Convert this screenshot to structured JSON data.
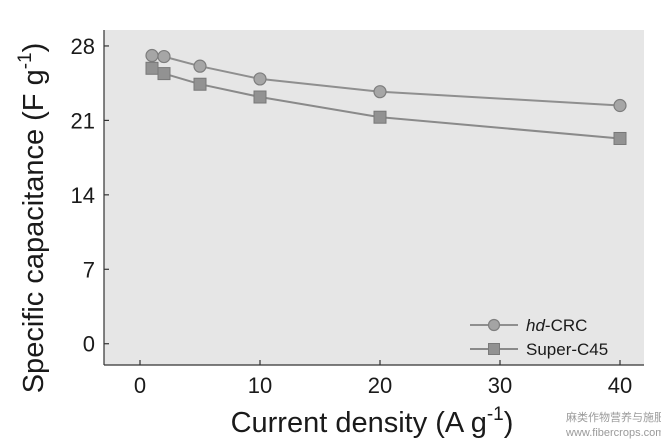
{
  "chart_data": {
    "type": "line",
    "xlabel": "Current density (A g",
    "xlabel_sup": "-1",
    "xlabel_tail": ")",
    "ylabel": "Specific capacitance (F g",
    "ylabel_sup": "-1",
    "ylabel_tail": ")",
    "xlim": [
      -3,
      42
    ],
    "ylim": [
      -2,
      29.5
    ],
    "xticks": [
      0,
      10,
      20,
      30,
      40
    ],
    "yticks": [
      0,
      7,
      14,
      21,
      28
    ],
    "legend_position": "bottom-right",
    "grid": false,
    "plot_background": "#e6e6e6",
    "series": [
      {
        "name_prefix": "hd",
        "name_suffix": "-CRC",
        "marker": "circle",
        "color": "#8f8f8f",
        "x": [
          1,
          2,
          5,
          10,
          20,
          40
        ],
        "y": [
          27.1,
          27.0,
          26.1,
          24.9,
          23.7,
          22.4
        ]
      },
      {
        "name": "Super-C45",
        "marker": "square",
        "color": "#8a8a8a",
        "x": [
          1,
          2,
          5,
          10,
          20,
          40
        ],
        "y": [
          25.9,
          25.4,
          24.4,
          23.2,
          21.3,
          19.3
        ]
      }
    ]
  },
  "watermark": {
    "line1": "麻类作物营养与施肥网",
    "line2": "www.fibercrops.com"
  }
}
